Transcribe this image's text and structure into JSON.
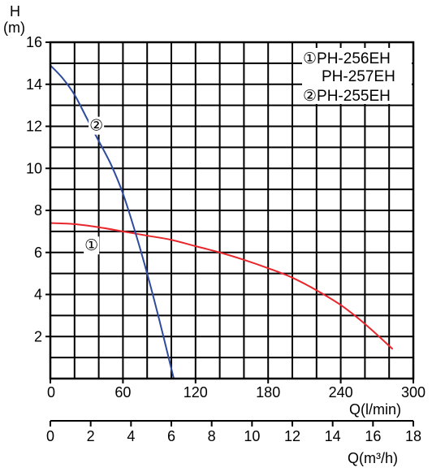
{
  "chart_data": {
    "type": "line",
    "ylabel_top": "H",
    "ylabel_unit": "(m)",
    "xlabel": "Q(l/min)",
    "xlabel2": "Q(m³/h)",
    "xlim": [
      0,
      300
    ],
    "ylim": [
      0,
      16
    ],
    "xlim2": [
      0,
      18
    ],
    "grid": true,
    "y_ticks": [
      2,
      4,
      6,
      8,
      10,
      12,
      14,
      16
    ],
    "x_ticks": [
      0,
      60,
      120,
      180,
      240,
      300
    ],
    "x2_ticks": [
      0,
      2,
      4,
      6,
      8,
      10,
      12,
      14,
      16,
      18
    ],
    "legend": [
      "①PH-256EH",
      "PH-257EH",
      "②PH-255EH"
    ],
    "series": [
      {
        "label": "①",
        "color": "#e8262c",
        "x": [
          0,
          20,
          40,
          60,
          80,
          100,
          120,
          140,
          160,
          180,
          200,
          220,
          240,
          260,
          283
        ],
        "y": [
          7.4,
          7.35,
          7.2,
          7.0,
          6.8,
          6.6,
          6.3,
          6.0,
          5.65,
          5.25,
          4.8,
          4.2,
          3.5,
          2.6,
          1.4
        ]
      },
      {
        "label": "②",
        "color": "#2e4a9e",
        "x": [
          0,
          10,
          20,
          30,
          40,
          50,
          60,
          70,
          80,
          90,
          102
        ],
        "y": [
          14.9,
          14.3,
          13.5,
          12.4,
          11.3,
          10.2,
          8.8,
          7.0,
          5.0,
          2.8,
          0
        ]
      }
    ]
  }
}
